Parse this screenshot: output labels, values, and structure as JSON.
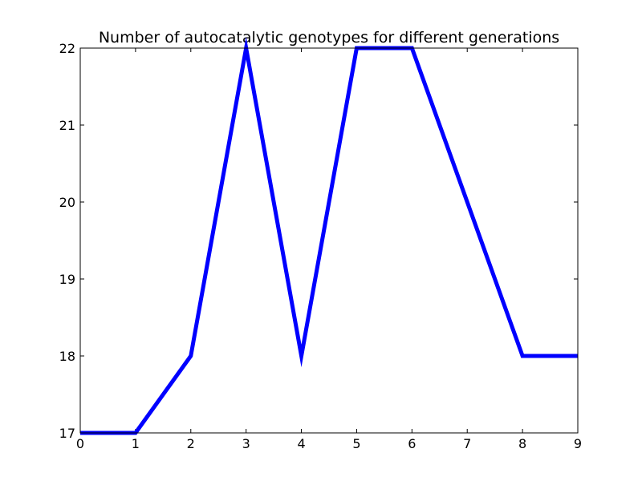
{
  "chart_data": {
    "type": "line",
    "title": "Number of autocatalytic genotypes for different generations",
    "xlabel": "",
    "ylabel": "",
    "xlim": [
      0,
      9
    ],
    "ylim": [
      17,
      22
    ],
    "xticks": [
      0,
      1,
      2,
      3,
      4,
      5,
      6,
      7,
      8,
      9
    ],
    "yticks": [
      17,
      18,
      19,
      20,
      21,
      22
    ],
    "grid": false,
    "series": [
      {
        "name": "autocatalytic genotypes",
        "color": "#0000ff",
        "x": [
          0,
          1,
          2,
          3,
          4,
          5,
          6,
          7,
          8,
          9
        ],
        "y": [
          17,
          17,
          18,
          22,
          18,
          22,
          22,
          20,
          18,
          18
        ]
      }
    ]
  }
}
